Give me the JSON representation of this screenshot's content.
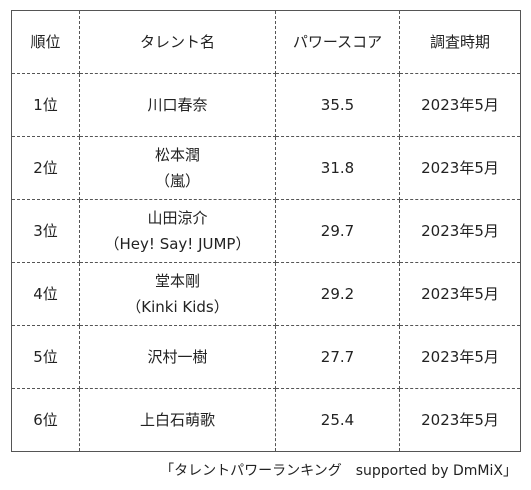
{
  "table": {
    "headers": [
      "順位",
      "タレント名",
      "パワースコア",
      "調査時期"
    ],
    "rows": [
      {
        "rank": "1位",
        "name1": "川口春奈",
        "name2": "",
        "score": "35.5",
        "period": "2023年5月"
      },
      {
        "rank": "2位",
        "name1": "松本潤",
        "name2": "（嵐）",
        "score": "31.8",
        "period": "2023年5月"
      },
      {
        "rank": "3位",
        "name1": "山田涼介",
        "name2": "（Hey! Say! JUMP）",
        "score": "29.7",
        "period": "2023年5月"
      },
      {
        "rank": "4位",
        "name1": "堂本剛",
        "name2": "（Kinki Kids）",
        "score": "29.2",
        "period": "2023年5月"
      },
      {
        "rank": "5位",
        "name1": "沢村一樹",
        "name2": "",
        "score": "27.7",
        "period": "2023年5月"
      },
      {
        "rank": "6位",
        "name1": "上白石萌歌",
        "name2": "",
        "score": "25.4",
        "period": "2023年5月"
      }
    ]
  },
  "caption": "「タレントパワーランキング　supported by DmMiX」"
}
